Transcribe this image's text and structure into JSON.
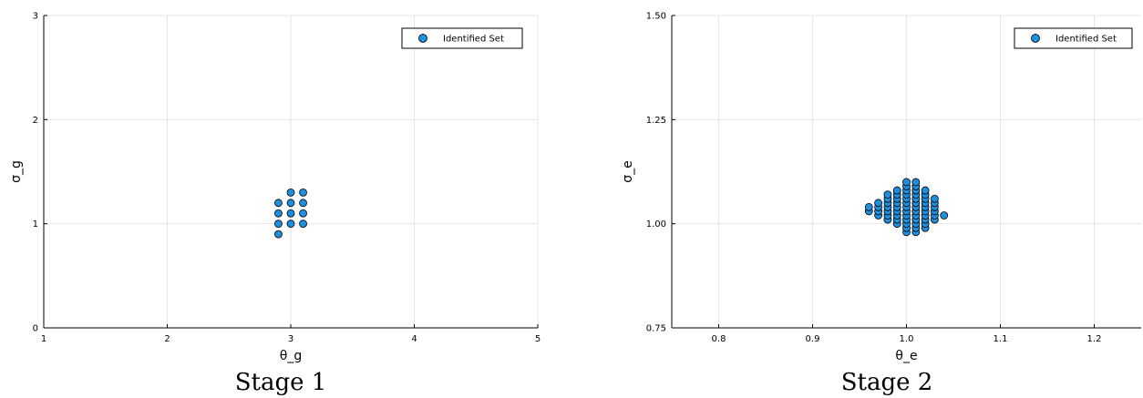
{
  "chart_data": [
    {
      "type": "scatter",
      "title": "",
      "caption": "Stage 1",
      "xlabel": "θ_g",
      "ylabel": "σ_g",
      "xlim": [
        1,
        5
      ],
      "ylim": [
        0,
        3
      ],
      "xticks": [
        1,
        2,
        3,
        4,
        5
      ],
      "yticks": [
        0,
        1,
        2,
        3
      ],
      "grid": true,
      "legend_position": "top-right",
      "series": [
        {
          "name": "Identified Set",
          "color": "#1f8fdd",
          "points": [
            [
              2.9,
              0.9
            ],
            [
              2.9,
              1.0
            ],
            [
              2.9,
              1.1
            ],
            [
              2.9,
              1.2
            ],
            [
              3.0,
              1.0
            ],
            [
              3.0,
              1.1
            ],
            [
              3.0,
              1.2
            ],
            [
              3.0,
              1.3
            ],
            [
              3.1,
              1.0
            ],
            [
              3.1,
              1.1
            ],
            [
              3.1,
              1.2
            ],
            [
              3.1,
              1.3
            ]
          ]
        }
      ]
    },
    {
      "type": "scatter",
      "title": "",
      "caption": "Stage 2",
      "xlabel": "θ_e",
      "ylabel": "σ_e",
      "xlim": [
        0.75,
        1.25
      ],
      "ylim": [
        0.75,
        1.5
      ],
      "xticks": [
        0.8,
        0.9,
        1.0,
        1.1,
        1.2
      ],
      "yticks": [
        0.75,
        1.0,
        1.25,
        1.5
      ],
      "xtick_labels": [
        "0.8",
        "0.9",
        "1.0",
        "1.1",
        "1.2"
      ],
      "ytick_labels": [
        "0.75",
        "1.00",
        "1.25",
        "1.50"
      ],
      "grid": true,
      "legend_position": "top-right",
      "series": [
        {
          "name": "Identified Set",
          "color": "#1f8fdd",
          "points": [
            [
              0.96,
              1.03
            ],
            [
              0.96,
              1.04
            ],
            [
              0.97,
              1.02
            ],
            [
              0.97,
              1.03
            ],
            [
              0.97,
              1.04
            ],
            [
              0.97,
              1.05
            ],
            [
              0.98,
              1.01
            ],
            [
              0.98,
              1.02
            ],
            [
              0.98,
              1.03
            ],
            [
              0.98,
              1.04
            ],
            [
              0.98,
              1.05
            ],
            [
              0.98,
              1.06
            ],
            [
              0.98,
              1.07
            ],
            [
              0.99,
              1.0
            ],
            [
              0.99,
              1.01
            ],
            [
              0.99,
              1.02
            ],
            [
              0.99,
              1.03
            ],
            [
              0.99,
              1.04
            ],
            [
              0.99,
              1.05
            ],
            [
              0.99,
              1.06
            ],
            [
              0.99,
              1.07
            ],
            [
              0.99,
              1.08
            ],
            [
              1.0,
              0.98
            ],
            [
              1.0,
              0.99
            ],
            [
              1.0,
              1.0
            ],
            [
              1.0,
              1.01
            ],
            [
              1.0,
              1.02
            ],
            [
              1.0,
              1.03
            ],
            [
              1.0,
              1.04
            ],
            [
              1.0,
              1.05
            ],
            [
              1.0,
              1.06
            ],
            [
              1.0,
              1.07
            ],
            [
              1.0,
              1.08
            ],
            [
              1.0,
              1.09
            ],
            [
              1.0,
              1.1
            ],
            [
              1.01,
              0.98
            ],
            [
              1.01,
              0.99
            ],
            [
              1.01,
              1.0
            ],
            [
              1.01,
              1.01
            ],
            [
              1.01,
              1.02
            ],
            [
              1.01,
              1.03
            ],
            [
              1.01,
              1.04
            ],
            [
              1.01,
              1.05
            ],
            [
              1.01,
              1.06
            ],
            [
              1.01,
              1.07
            ],
            [
              1.01,
              1.08
            ],
            [
              1.01,
              1.09
            ],
            [
              1.01,
              1.1
            ],
            [
              1.02,
              0.99
            ],
            [
              1.02,
              1.0
            ],
            [
              1.02,
              1.01
            ],
            [
              1.02,
              1.02
            ],
            [
              1.02,
              1.03
            ],
            [
              1.02,
              1.04
            ],
            [
              1.02,
              1.05
            ],
            [
              1.02,
              1.06
            ],
            [
              1.02,
              1.07
            ],
            [
              1.02,
              1.08
            ],
            [
              1.03,
              1.01
            ],
            [
              1.03,
              1.02
            ],
            [
              1.03,
              1.03
            ],
            [
              1.03,
              1.04
            ],
            [
              1.03,
              1.05
            ],
            [
              1.03,
              1.06
            ],
            [
              1.04,
              1.02
            ]
          ]
        }
      ]
    }
  ]
}
